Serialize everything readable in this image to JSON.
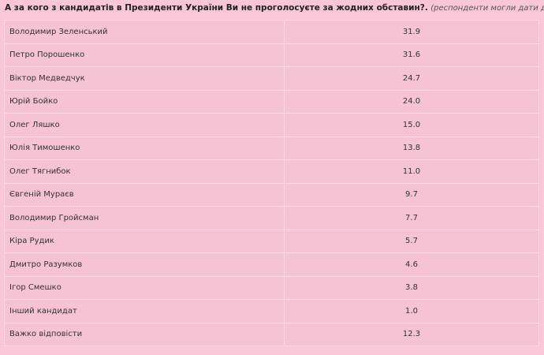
{
  "header": {
    "title": "А за кого з кандидатів в Президенти України Ви не проголосуєте за жодних обставин?.",
    "note": "(респонденти могли дати декілька варіантів відповіді)"
  },
  "table": {
    "rows": [
      [
        "Володимир Зеленський",
        "31.9"
      ],
      [
        "Петро Порошенко",
        "31.6"
      ],
      [
        "Віктор Медведчук",
        "24.7"
      ],
      [
        "Юрій Бойко",
        "24.0"
      ],
      [
        "Олег Ляшко",
        "15.0"
      ],
      [
        "Юлія Тимошенко",
        "13.8"
      ],
      [
        "Олег Тягнибок",
        "11.0"
      ],
      [
        "Євгеній Мураєв",
        "9.7"
      ],
      [
        "Володимир Гройсман",
        "7.7"
      ],
      [
        "Кіра Рудик",
        "5.7"
      ],
      [
        "Дмитро Разумков",
        "4.6"
      ],
      [
        "Ігор Смешко",
        "3.8"
      ],
      [
        "Інший кандидат",
        "1.0"
      ],
      [
        "Важко відповісти",
        "12.3"
      ]
    ]
  }
}
